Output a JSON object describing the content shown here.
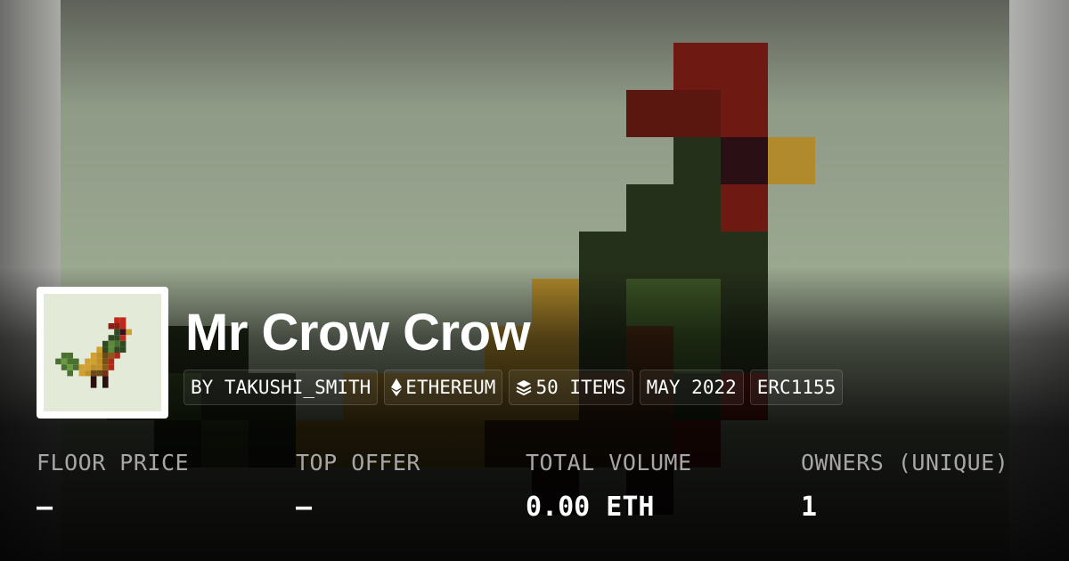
{
  "collection": {
    "title": "Mr Crow Crow",
    "badges": [
      {
        "label": "BY TAKUSHI_SMITH",
        "icon": ""
      },
      {
        "label": "ETHEREUM",
        "icon": "ethereum-icon"
      },
      {
        "label": "50 ITEMS",
        "icon": "layers-icon"
      },
      {
        "label": "MAY 2022",
        "icon": ""
      },
      {
        "label": "ERC1155",
        "icon": ""
      }
    ]
  },
  "stats": [
    {
      "label": "FLOOR PRICE",
      "value": "–"
    },
    {
      "label": "TOP OFFER",
      "value": "–"
    },
    {
      "label": "TOTAL VOLUME",
      "value": "0.00 ETH"
    },
    {
      "label": "OWNERS (UNIQUE)",
      "value": "1"
    }
  ]
}
